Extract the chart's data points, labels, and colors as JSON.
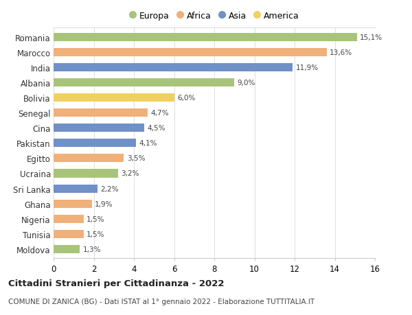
{
  "countries": [
    "Romania",
    "Marocco",
    "India",
    "Albania",
    "Bolivia",
    "Senegal",
    "Cina",
    "Pakistan",
    "Egitto",
    "Ucraina",
    "Sri Lanka",
    "Ghana",
    "Nigeria",
    "Tunisia",
    "Moldova"
  ],
  "values": [
    15.1,
    13.6,
    11.9,
    9.0,
    6.0,
    4.7,
    4.5,
    4.1,
    3.5,
    3.2,
    2.2,
    1.9,
    1.5,
    1.5,
    1.3
  ],
  "labels": [
    "15,1%",
    "13,6%",
    "11,9%",
    "9,0%",
    "6,0%",
    "4,7%",
    "4,5%",
    "4,1%",
    "3,5%",
    "3,2%",
    "2,2%",
    "1,9%",
    "1,5%",
    "1,5%",
    "1,3%"
  ],
  "continents": [
    "Europa",
    "Africa",
    "Asia",
    "Europa",
    "America",
    "Africa",
    "Asia",
    "Asia",
    "Africa",
    "Europa",
    "Asia",
    "Africa",
    "Africa",
    "Africa",
    "Europa"
  ],
  "colors": {
    "Europa": "#a8c47a",
    "Africa": "#f0b07a",
    "Asia": "#7090c8",
    "America": "#f0d060"
  },
  "legend_order": [
    "Europa",
    "Africa",
    "Asia",
    "America"
  ],
  "title": "Cittadini Stranieri per Cittadinanza - 2022",
  "subtitle": "COMUNE DI ZANICA (BG) - Dati ISTAT al 1° gennaio 2022 - Elaborazione TUTTITALIA.IT",
  "xlim": [
    0,
    16
  ],
  "xticks": [
    0,
    2,
    4,
    6,
    8,
    10,
    12,
    14,
    16
  ],
  "background_color": "#ffffff",
  "grid_color": "#dddddd"
}
